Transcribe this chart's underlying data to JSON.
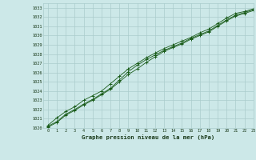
{
  "title": "Graphe pression niveau de la mer (hPa)",
  "bg_color": "#cce8e8",
  "grid_color": "#aacccc",
  "line_color": "#1a5c1a",
  "marker_color": "#1a5c1a",
  "text_color": "#1a3a1a",
  "xlim": [
    -0.5,
    23
  ],
  "ylim": [
    1020,
    1033.5
  ],
  "yticks": [
    1020,
    1021,
    1022,
    1023,
    1024,
    1025,
    1026,
    1027,
    1028,
    1029,
    1030,
    1031,
    1032,
    1033
  ],
  "xticks": [
    0,
    1,
    2,
    3,
    4,
    5,
    6,
    7,
    8,
    9,
    10,
    11,
    12,
    13,
    14,
    15,
    16,
    17,
    18,
    19,
    20,
    21,
    22,
    23
  ],
  "series": [
    [
      1020.2,
      1020.7,
      1021.5,
      1022.0,
      1022.6,
      1023.1,
      1023.7,
      1024.3,
      1025.2,
      1026.1,
      1026.8,
      1027.4,
      1027.9,
      1028.4,
      1028.8,
      1029.2,
      1029.7,
      1030.1,
      1030.5,
      1031.1,
      1031.7,
      1032.2,
      1032.5,
      1032.8
    ],
    [
      1020.1,
      1020.6,
      1021.4,
      1021.9,
      1022.5,
      1023.0,
      1023.6,
      1024.2,
      1025.0,
      1025.8,
      1026.4,
      1027.1,
      1027.7,
      1028.3,
      1028.7,
      1029.1,
      1029.6,
      1030.0,
      1030.4,
      1031.0,
      1031.6,
      1032.1,
      1032.4,
      1032.7
    ],
    [
      1020.3,
      1021.1,
      1021.8,
      1022.3,
      1023.0,
      1023.5,
      1024.0,
      1024.8,
      1025.6,
      1026.4,
      1027.0,
      1027.6,
      1028.1,
      1028.6,
      1029.0,
      1029.4,
      1029.8,
      1030.3,
      1030.7,
      1031.3,
      1031.9,
      1032.4,
      1032.6,
      1032.9
    ]
  ]
}
